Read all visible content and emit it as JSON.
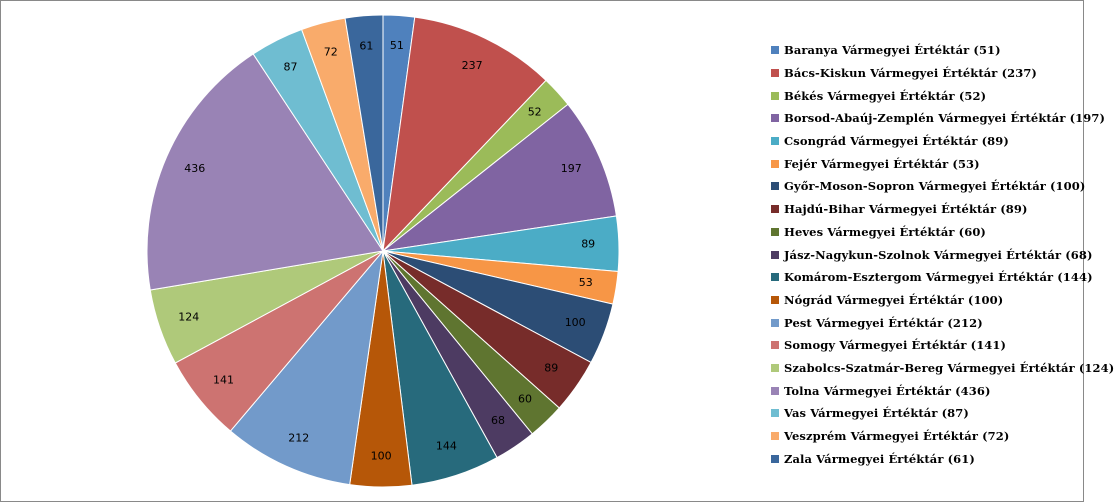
{
  "chart_data": {
    "type": "pie",
    "start_angle_deg": 0,
    "direction": "clockwise",
    "slices": [
      {
        "name": "Baranya Vármegyei Értéktár (51)",
        "label": "51",
        "value": 51,
        "color": "#4F81BD"
      },
      {
        "name": "Bács-Kiskun Vármegyei Értéktár (237)",
        "label": "237",
        "value": 237,
        "color": "#C0504D"
      },
      {
        "name": "Békés Vármegyei Értéktár (52)",
        "label": "52",
        "value": 52,
        "color": "#9BBB59"
      },
      {
        "name": "Borsod-Abaúj-Zemplén Vármegyei Értéktár (197)",
        "label": "197",
        "value": 197,
        "color": "#8064A2"
      },
      {
        "name": "Csongrád Vármegyei Értéktár (89)",
        "label": "89",
        "value": 89,
        "color": "#4BACC6"
      },
      {
        "name": "Fejér Vármegyei Értéktár (53)",
        "label": "53",
        "value": 53,
        "color": "#F79646"
      },
      {
        "name": "Győr-Moson-Sopron Vármegyei Értéktár (100)",
        "label": "100",
        "value": 100,
        "color": "#2C4D75"
      },
      {
        "name": "Hajdú-Bihar Vármegyei Értéktár (89)",
        "label": "89",
        "value": 89,
        "color": "#772C2A"
      },
      {
        "name": "Heves Vármegyei Értéktár (60)",
        "label": "60",
        "value": 60,
        "color": "#5F7530"
      },
      {
        "name": "Jász-Nagykun-Szolnok Vármegyei Értéktár (68)",
        "label": "68",
        "value": 68,
        "color": "#4D3B62"
      },
      {
        "name": "Komárom-Esztergom Vármegyei Értéktár (144)",
        "label": "144",
        "value": 144,
        "color": "#276A7C"
      },
      {
        "name": "Nógrád Vármegyei Értéktár (100)",
        "label": "100",
        "value": 100,
        "color": "#B65708"
      },
      {
        "name": "Pest Vármegyei Értéktár (212)",
        "label": "212",
        "value": 212,
        "color": "#729ACA"
      },
      {
        "name": "Somogy Vármegyei Értéktár (141)",
        "label": "141",
        "value": 141,
        "color": "#CD7371"
      },
      {
        "name": "Szabolcs-Szatmár-Bereg Vármegyei Értéktár (124)",
        "label": "124",
        "value": 124,
        "color": "#AFC97A"
      },
      {
        "name": "Tolna Vármegyei Értéktár (436)",
        "label": "436",
        "value": 436,
        "color": "#9983B5"
      },
      {
        "name": "Vas Vármegyei Értéktár (87)",
        "label": "87",
        "value": 87,
        "color": "#6FBDD1"
      },
      {
        "name": "Veszprém Vármegyei Értéktár (72)",
        "label": "72",
        "value": 72,
        "color": "#F9AB6B"
      },
      {
        "name": "Zala Vármegyei Értéktár (61)",
        "label": "61",
        "value": 61,
        "color": "#3A679C"
      }
    ],
    "legend_position": "right"
  }
}
